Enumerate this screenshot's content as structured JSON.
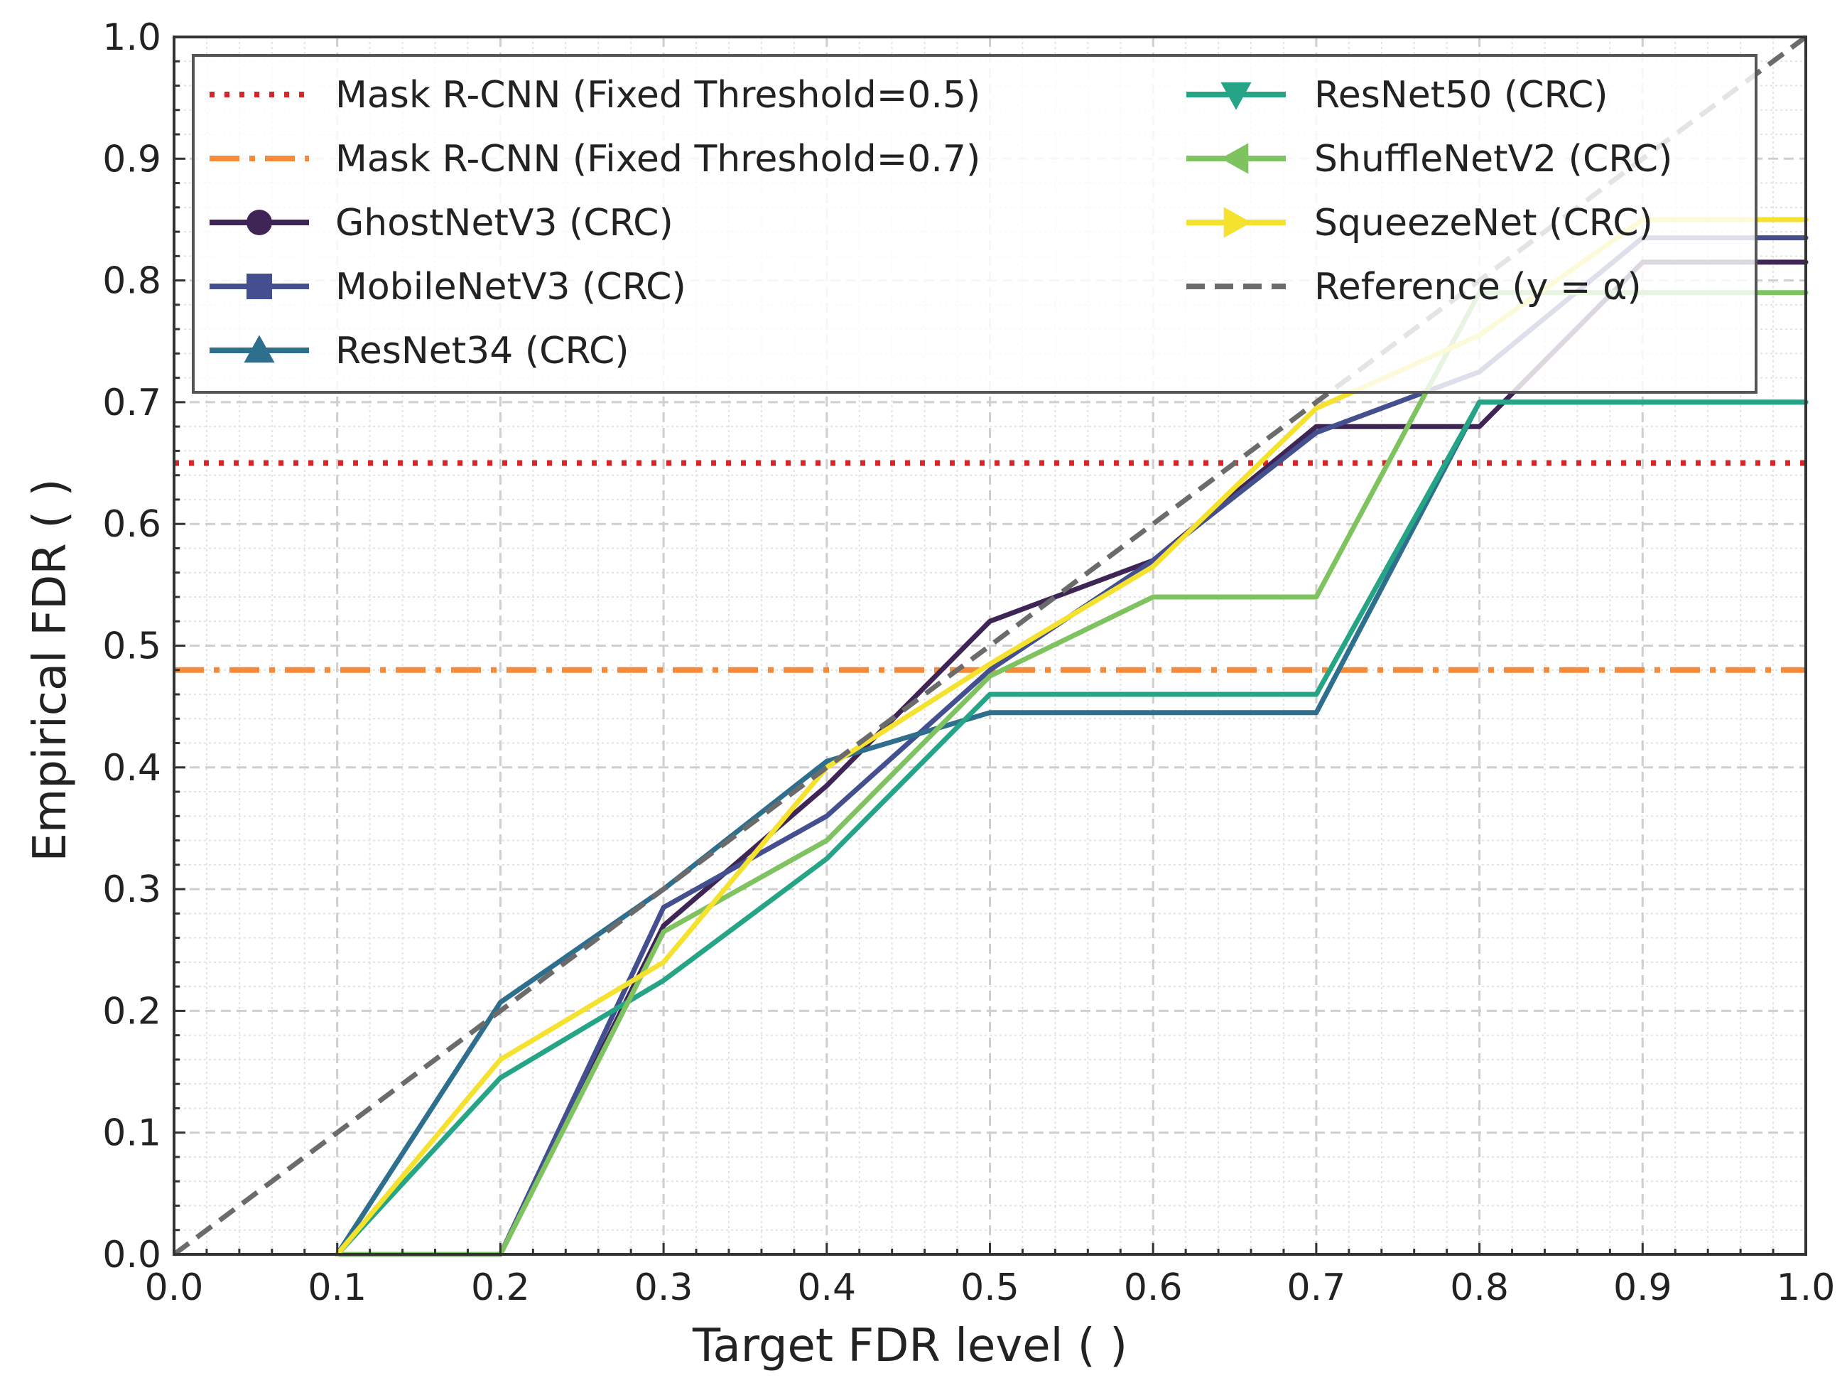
{
  "chart_data": {
    "type": "line",
    "title": "",
    "xlabel": "Target FDR level ( )",
    "ylabel": "Empirical FDR ( )",
    "xlim": [
      0.0,
      1.0
    ],
    "ylim": [
      0.0,
      1.0
    ],
    "grid": true,
    "legend_position": "top",
    "x_ticks": [
      "0.0",
      "0.1",
      "0.2",
      "0.3",
      "0.4",
      "0.5",
      "0.6",
      "0.7",
      "0.8",
      "0.9",
      "1.0"
    ],
    "y_ticks": [
      "0.0",
      "0.1",
      "0.2",
      "0.3",
      "0.4",
      "0.5",
      "0.6",
      "0.7",
      "0.8",
      "0.9",
      "1.0"
    ],
    "x": [
      0.1,
      0.2,
      0.3,
      0.4,
      0.5,
      0.6,
      0.7,
      0.8,
      0.9,
      1.0
    ],
    "hlines": [
      {
        "name": "Mask R-CNN (Fixed Threshold=0.5)",
        "y": 0.65,
        "color": "#d62728",
        "style": "dotted"
      },
      {
        "name": "Mask R-CNN (Fixed Threshold=0.7)",
        "y": 0.48,
        "color": "#f58b3a",
        "style": "dashdot"
      }
    ],
    "series": [
      {
        "name": "GhostNetV3 (CRC)",
        "color": "#3f2556",
        "marker": "circle",
        "values": [
          0.0,
          0.0,
          0.27,
          0.385,
          0.52,
          0.57,
          0.68,
          0.68,
          0.815,
          0.815
        ]
      },
      {
        "name": "MobileNetV3 (CRC)",
        "color": "#434f8f",
        "marker": "square",
        "values": [
          0.0,
          0.0,
          0.285,
          0.36,
          0.48,
          0.57,
          0.675,
          0.725,
          0.835,
          0.835
        ]
      },
      {
        "name": "ResNet34 (CRC)",
        "color": "#2e6f8e",
        "marker": "triangle-up",
        "values": [
          0.0,
          0.207,
          0.3,
          0.405,
          0.445,
          0.445,
          0.445,
          0.7,
          0.7,
          0.7
        ]
      },
      {
        "name": "ResNet50 (CRC)",
        "color": "#25a585",
        "marker": "triangle-down",
        "values": [
          0.0,
          0.145,
          0.225,
          0.325,
          0.46,
          0.46,
          0.46,
          0.7,
          0.7,
          0.7
        ]
      },
      {
        "name": "ShuffleNetV2 (CRC)",
        "color": "#7ec35f",
        "marker": "triangle-left",
        "values": [
          0.0,
          0.0,
          0.265,
          0.34,
          0.475,
          0.54,
          0.54,
          0.79,
          0.79,
          0.79
        ]
      },
      {
        "name": "SqueezeNet (CRC)",
        "color": "#f4e22f",
        "marker": "triangle-right",
        "values": [
          0.0,
          0.16,
          0.24,
          0.4,
          0.485,
          0.565,
          0.695,
          0.755,
          0.85,
          0.85
        ]
      }
    ],
    "reference": {
      "name": "Reference (y = α)",
      "color": "#6b6b6b",
      "style": "dashed",
      "x": [
        0.0,
        1.0
      ],
      "y": [
        0.0,
        1.0
      ]
    }
  }
}
